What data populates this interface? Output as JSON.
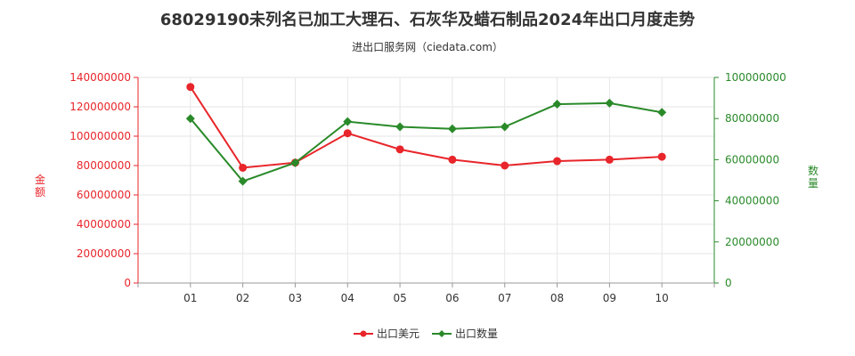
{
  "title": "68029190未列名已加工大理石、石灰华及蜡石制品2024年出口月度走势",
  "subtitle": "进出口服务网（ciedata.com）",
  "chart_data": {
    "type": "line",
    "categories": [
      "01",
      "02",
      "03",
      "04",
      "05",
      "06",
      "07",
      "08",
      "09",
      "10"
    ],
    "series": [
      {
        "name": "出口美元",
        "axis": "left",
        "color": "#e8252a",
        "values": [
          133500000,
          78500000,
          82000000,
          102000000,
          91000000,
          84000000,
          80000000,
          83000000,
          84000000,
          86000000
        ]
      },
      {
        "name": "出口数量",
        "axis": "right",
        "color": "#2a8a2a",
        "values": [
          80000000,
          49500000,
          58500000,
          78500000,
          76000000,
          75000000,
          76000000,
          87000000,
          87500000,
          83000000
        ]
      }
    ],
    "ylabel_left": "金额",
    "ylabel_right": "数量",
    "ylim_left": [
      0,
      140000000
    ],
    "ylim_right": [
      0,
      100000000
    ],
    "yticks_left": [
      "0",
      "20000000",
      "40000000",
      "60000000",
      "80000000",
      "100000000",
      "120000000",
      "140000000"
    ],
    "yticks_right": [
      "0",
      "20000000",
      "40000000",
      "60000000",
      "80000000",
      "100000000"
    ],
    "grid": true,
    "legend_position": "bottom-center"
  }
}
